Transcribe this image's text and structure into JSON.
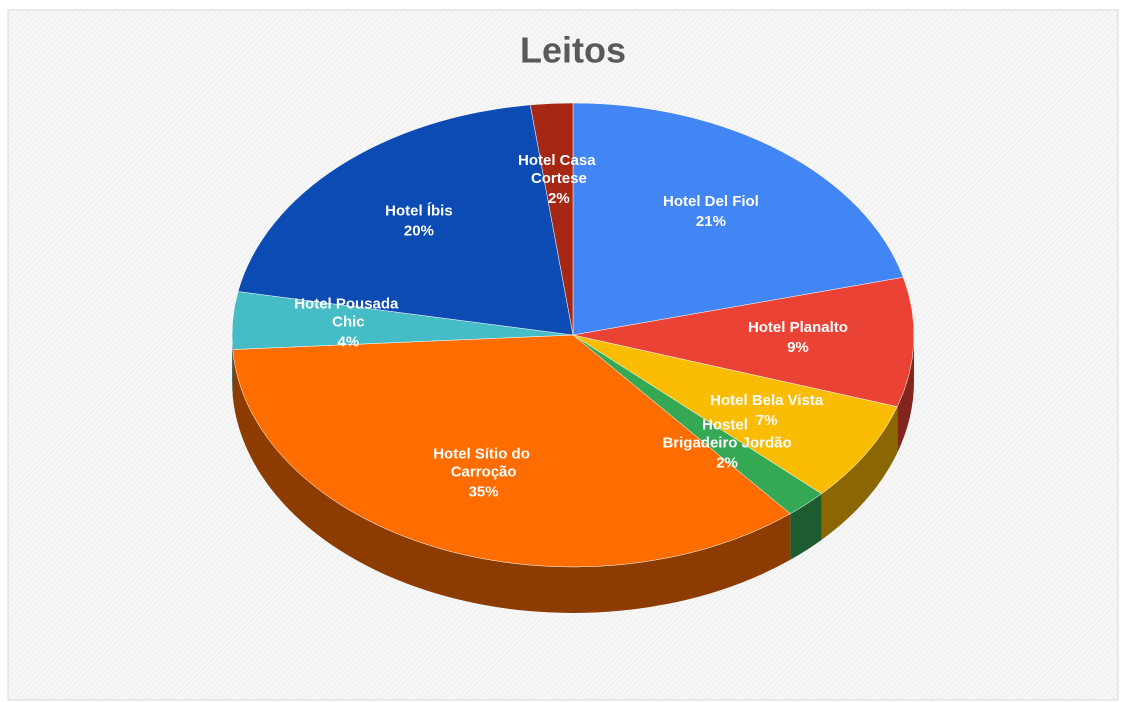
{
  "chart_data": {
    "type": "pie3d",
    "title": "Leitos",
    "categories": [
      "Hotel Del Fiol",
      "Hotel Planalto",
      "Hotel Bela Vista",
      "Hostel Brigadeiro Jordão",
      "Hotel Sítio do Carroção",
      "Hotel Pousada Chic",
      "Hotel Íbis",
      "Hotel Casa Cortese"
    ],
    "values": [
      21,
      9,
      7,
      2,
      35,
      4,
      20,
      2
    ],
    "value_labels": [
      "21%",
      "9%",
      "7%",
      "2%",
      "35%",
      "4%",
      "20%",
      "2%"
    ],
    "colors": [
      "#4285f4",
      "#ea4335",
      "#fbbc04",
      "#34a853",
      "#ff6d01",
      "#46bdc6",
      "#0b4bb3",
      "#a52714"
    ]
  }
}
